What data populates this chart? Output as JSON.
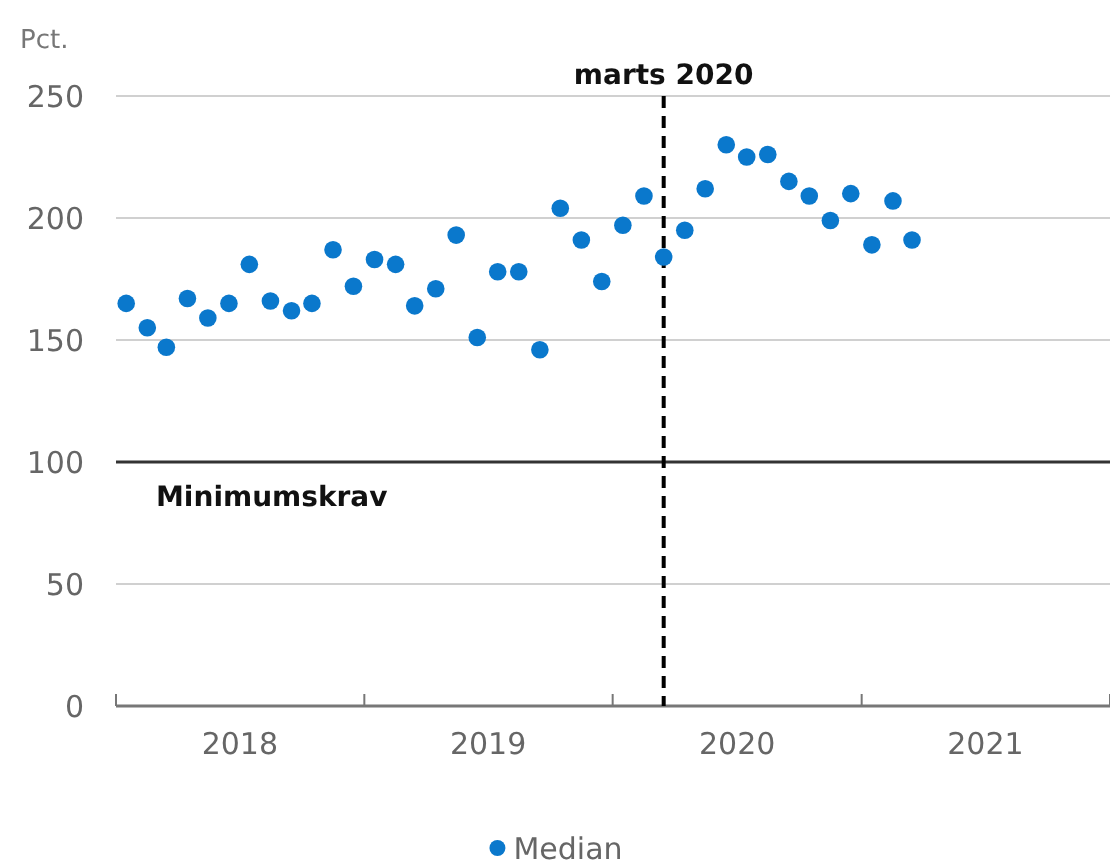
{
  "chart_data": {
    "type": "scatter",
    "ylabel": "Pct.",
    "x": [
      "2018-01",
      "2018-02",
      "2018-03",
      "2018-04",
      "2018-05",
      "2018-06",
      "2018-07",
      "2018-08",
      "2018-09",
      "2018-10",
      "2018-11",
      "2018-12",
      "2019-01",
      "2019-02",
      "2019-03",
      "2019-04",
      "2019-05",
      "2019-06",
      "2019-07",
      "2019-08",
      "2019-09",
      "2019-10",
      "2019-11",
      "2019-12",
      "2020-01",
      "2020-02",
      "2020-03",
      "2020-04",
      "2020-05",
      "2020-06",
      "2020-07",
      "2020-08",
      "2020-09",
      "2020-10",
      "2020-11",
      "2020-12",
      "2021-01",
      "2021-02",
      "2021-03"
    ],
    "series": [
      {
        "name": "Median",
        "color": "#0a78cc",
        "values": [
          165,
          155,
          147,
          167,
          159,
          165,
          181,
          166,
          162,
          165,
          187,
          172,
          183,
          181,
          164,
          171,
          193,
          151,
          178,
          178,
          146,
          204,
          191,
          174,
          197,
          209,
          184,
          195,
          212,
          230,
          225,
          226,
          215,
          209,
          199,
          210,
          189,
          207,
          191
        ]
      }
    ],
    "xlim": [
      "2017-12-17",
      "2021-12-17"
    ],
    "xticks": [
      {
        "value": "2017-12-17",
        "label": null
      },
      {
        "value": "2018-06-17",
        "label": "2018"
      },
      {
        "value": "2018-12-17",
        "label": null
      },
      {
        "value": "2019-06-17",
        "label": "2019"
      },
      {
        "value": "2019-12-17",
        "label": null
      },
      {
        "value": "2020-06-17",
        "label": "2020"
      },
      {
        "value": "2020-12-17",
        "label": null
      },
      {
        "value": "2021-06-17",
        "label": "2021"
      },
      {
        "value": "2021-12-17",
        "label": null
      }
    ],
    "ylim": [
      0,
      250
    ],
    "yticks": [
      0,
      50,
      100,
      150,
      200,
      250
    ],
    "grid": "y",
    "marker": "circle",
    "legend": "bottom",
    "ref_lines": [
      {
        "axis": "y",
        "value": 100,
        "label": "Minimumskrav",
        "color": "#333333",
        "line_style": "solid"
      },
      {
        "axis": "x",
        "value": "2020-03",
        "label": "marts 2020",
        "color": "#000000",
        "line_style": "dashed"
      }
    ]
  }
}
